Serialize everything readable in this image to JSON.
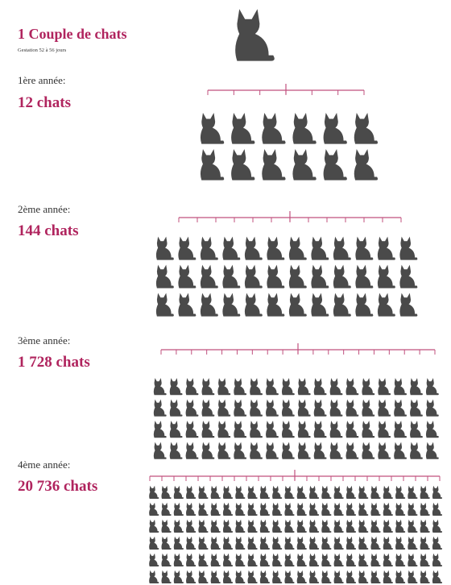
{
  "header": {
    "title": "1 Couple de chats",
    "subtitle": "Gestation 52 à 56 jours"
  },
  "levels": [
    {
      "label": "1ère année:",
      "count": "12 chats"
    },
    {
      "label": "2ème année:",
      "count": "144 chats"
    },
    {
      "label": "3ème année:",
      "count": "1 728 chats"
    },
    {
      "label": "4ème année:",
      "count": "20 736 chats"
    }
  ]
}
